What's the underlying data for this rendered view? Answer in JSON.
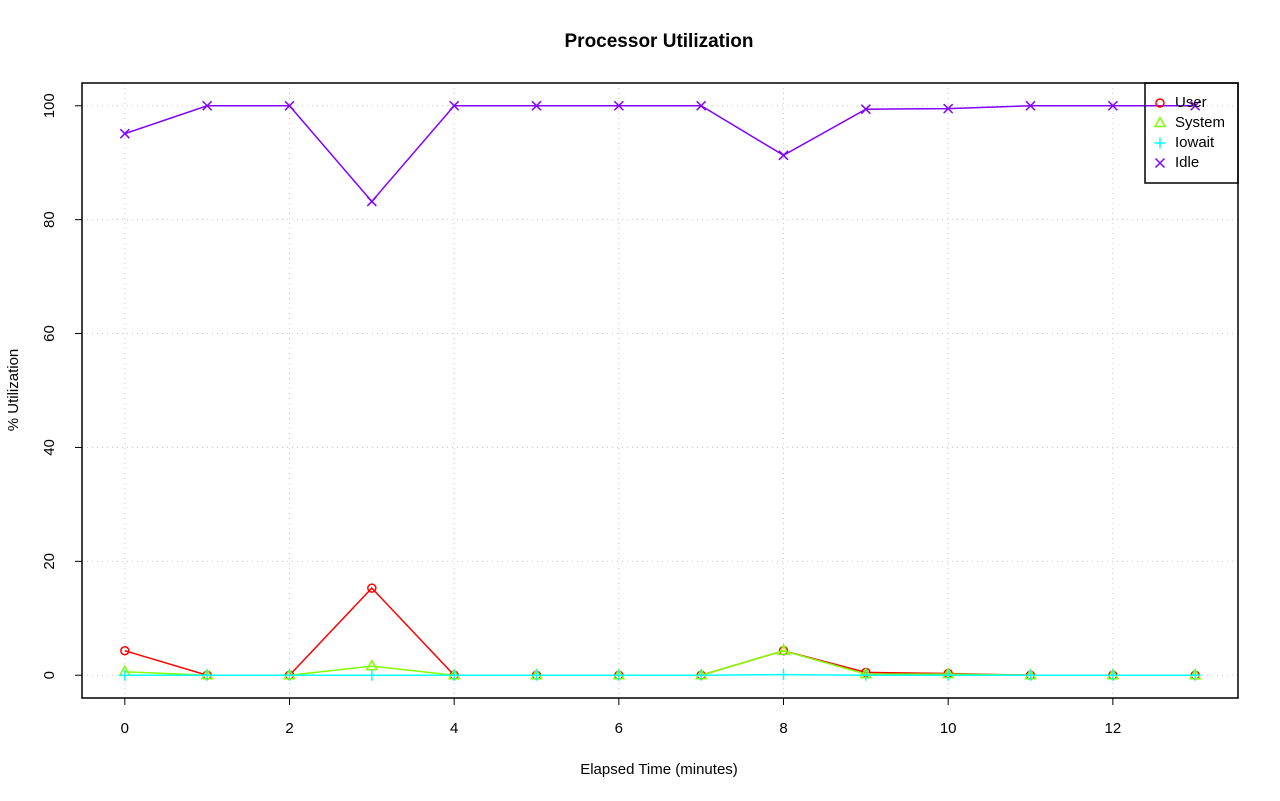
{
  "chart_data": {
    "type": "line",
    "title": "Processor Utilization",
    "x_label": "Elapsed Time (minutes)",
    "y_label": "% Utilization",
    "x": [
      0,
      1,
      2,
      3,
      4,
      5,
      6,
      7,
      8,
      9,
      10,
      11,
      12,
      13
    ],
    "series": [
      {
        "name": "User",
        "color": "#ff0000",
        "marker": "circle",
        "values": [
          4.3,
          0,
          0,
          15.3,
          0,
          0,
          0,
          0,
          4.3,
          0.5,
          0.3,
          0,
          0,
          0
        ]
      },
      {
        "name": "System",
        "color": "#80ff00",
        "marker": "triangle",
        "values": [
          0.6,
          0,
          0,
          1.6,
          0,
          0,
          0,
          0,
          4.3,
          0.2,
          0.2,
          0,
          0,
          0
        ]
      },
      {
        "name": "Iowait",
        "color": "#00ffff",
        "marker": "plus",
        "values": [
          0,
          0,
          0,
          0,
          0,
          0,
          0,
          0,
          0.1,
          0,
          0,
          0,
          0,
          0
        ]
      },
      {
        "name": "Idle",
        "color": "#8000ff",
        "marker": "cross",
        "values": [
          95.1,
          100,
          100,
          83.2,
          100,
          100,
          100,
          100,
          91.3,
          99.4,
          99.5,
          100,
          100,
          100
        ]
      }
    ],
    "xlim": [
      -0.52,
      13.52
    ],
    "xticks": [
      0,
      2,
      4,
      6,
      8,
      10,
      12
    ],
    "ylim": [
      -4,
      104
    ],
    "yticks": [
      0,
      20,
      40,
      60,
      80,
      100
    ],
    "grid": true,
    "legend": "topright"
  }
}
